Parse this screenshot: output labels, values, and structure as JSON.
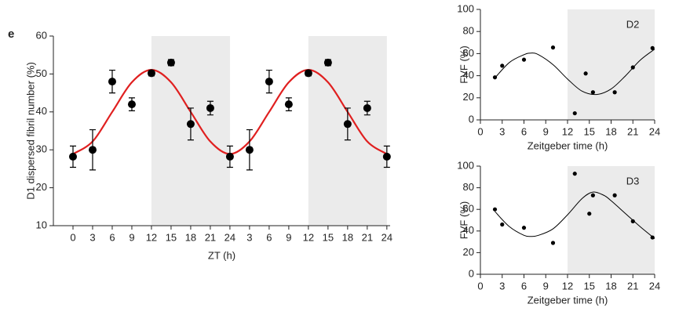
{
  "chart_data": [
    {
      "type": "scatter",
      "panel_label": "e",
      "xlabel": "ZT (h)",
      "ylabel": "D1 dispersed fibril number (%)",
      "x": [
        0,
        3,
        6,
        9,
        12,
        15,
        18,
        21,
        24,
        27,
        30,
        33,
        36,
        39,
        42,
        45,
        48
      ],
      "values": [
        28.2,
        30,
        48,
        42,
        50.2,
        53,
        36.8,
        41,
        28.2,
        30,
        48,
        42,
        50.2,
        53,
        36.8,
        41,
        28.2
      ],
      "errors": [
        2.8,
        5.3,
        3,
        1.7,
        0.7,
        0.8,
        4.2,
        1.8,
        2.8,
        5.3,
        3,
        1.7,
        0.7,
        0.8,
        4.2,
        1.8,
        2.8
      ],
      "color": "#000000",
      "fit": {
        "color": "#e02020",
        "values": [
          28.9,
          32.2,
          40,
          47.8,
          51.1,
          47.8,
          40,
          32.2,
          28.9,
          32.2,
          40,
          47.8,
          51.1,
          47.8,
          40,
          32.2,
          28.9
        ]
      },
      "shaded": [
        [
          12,
          24
        ],
        [
          36,
          48
        ]
      ],
      "xlim": [
        -3,
        48.5
      ],
      "xticks": [
        0,
        3,
        6,
        9,
        12,
        15,
        18,
        21,
        24,
        {
          "value": 27,
          "label": "3"
        },
        {
          "value": 30,
          "label": "6"
        },
        {
          "value": 33,
          "label": "9"
        },
        {
          "value": 36,
          "label": "12"
        },
        {
          "value": 39,
          "label": "15"
        },
        {
          "value": 42,
          "label": "18"
        },
        {
          "value": 45,
          "label": "21"
        },
        {
          "value": 48,
          "label": "24"
        }
      ],
      "ylim": [
        10,
        60
      ],
      "yticks": [
        10,
        20,
        30,
        40,
        50,
        60
      ]
    },
    {
      "type": "scatter",
      "annotation": "D2",
      "xlabel": "Zeitgeber time (h)",
      "ylabel": "FVF (%)",
      "x": [
        2,
        3,
        6,
        10,
        13,
        14.5,
        15.5,
        18.5,
        21,
        23.7
      ],
      "values": [
        38.5,
        49,
        54.5,
        65.5,
        6,
        42,
        25,
        25,
        47.5,
        65
      ],
      "color": "#000000",
      "fit": {
        "color": "#000000",
        "x": [
          2,
          4,
          6,
          7,
          8,
          10,
          12,
          14,
          16,
          18,
          20,
          22,
          24
        ],
        "values": [
          38,
          52,
          59,
          60.5,
          59,
          50,
          37,
          26,
          23,
          28,
          40,
          54,
          64
        ]
      },
      "shaded": [
        [
          12,
          24
        ]
      ],
      "xlim": [
        0,
        24
      ],
      "xticks": [
        0,
        3,
        6,
        9,
        12,
        15,
        18,
        21,
        24
      ],
      "ylim": [
        0,
        100
      ],
      "yticks": [
        0,
        20,
        40,
        60,
        80,
        100
      ]
    },
    {
      "type": "scatter",
      "annotation": "D3",
      "xlabel": "Zeitgeber time (h)",
      "ylabel": "FVF (%)",
      "x": [
        2,
        3,
        6,
        10,
        13,
        15,
        15.5,
        18.5,
        21,
        23.7
      ],
      "values": [
        60,
        46,
        43,
        29,
        93,
        56,
        73,
        73,
        49,
        34
      ],
      "color": "#000000",
      "fit": {
        "color": "#000000",
        "x": [
          2,
          4,
          6,
          7,
          8,
          10,
          12,
          14,
          15.5,
          17,
          18,
          20,
          22,
          24
        ],
        "values": [
          58,
          44,
          36,
          35,
          36,
          42,
          55,
          70,
          76,
          73,
          68,
          56,
          44,
          33
        ]
      },
      "shaded": [
        [
          12,
          24
        ]
      ],
      "xlim": [
        0,
        24
      ],
      "xticks": [
        0,
        3,
        6,
        9,
        12,
        15,
        18,
        21,
        24
      ],
      "ylim": [
        0,
        100
      ],
      "yticks": [
        0,
        20,
        40,
        60,
        80,
        100
      ]
    }
  ]
}
